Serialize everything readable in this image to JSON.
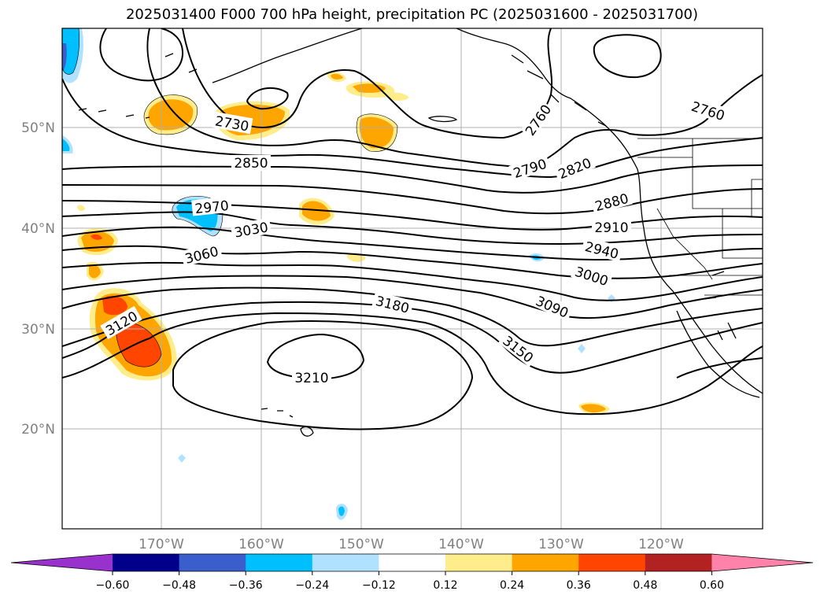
{
  "title": "2025031400 F000 700 hPa height, precipitation PC (2025031600 - 2025031700)",
  "lat_labels": [
    "50°N",
    "40°N",
    "30°N",
    "20°N"
  ],
  "lon_labels": [
    "170°W",
    "160°W",
    "150°W",
    "140°W",
    "130°W",
    "120°W"
  ],
  "contour_labels": [
    "2730",
    "2760",
    "2760",
    "2790",
    "2820",
    "2850",
    "2880",
    "2910",
    "2940",
    "2970",
    "3000",
    "3030",
    "3060",
    "3090",
    "3120",
    "3150",
    "3180",
    "3210"
  ],
  "colorbar": {
    "ticks": [
      "−0.60",
      "−0.48",
      "−0.36",
      "−0.24",
      "−0.12",
      "0.12",
      "0.24",
      "0.36",
      "0.48",
      "0.60"
    ],
    "colors": [
      "#9932cc",
      "#00008b",
      "#3a5fcd",
      "#00bfff",
      "#b0e2ff",
      "#ffffff",
      "#ffec8b",
      "#ffa500",
      "#ff4500",
      "#b22222",
      "#ff82ab"
    ]
  }
}
